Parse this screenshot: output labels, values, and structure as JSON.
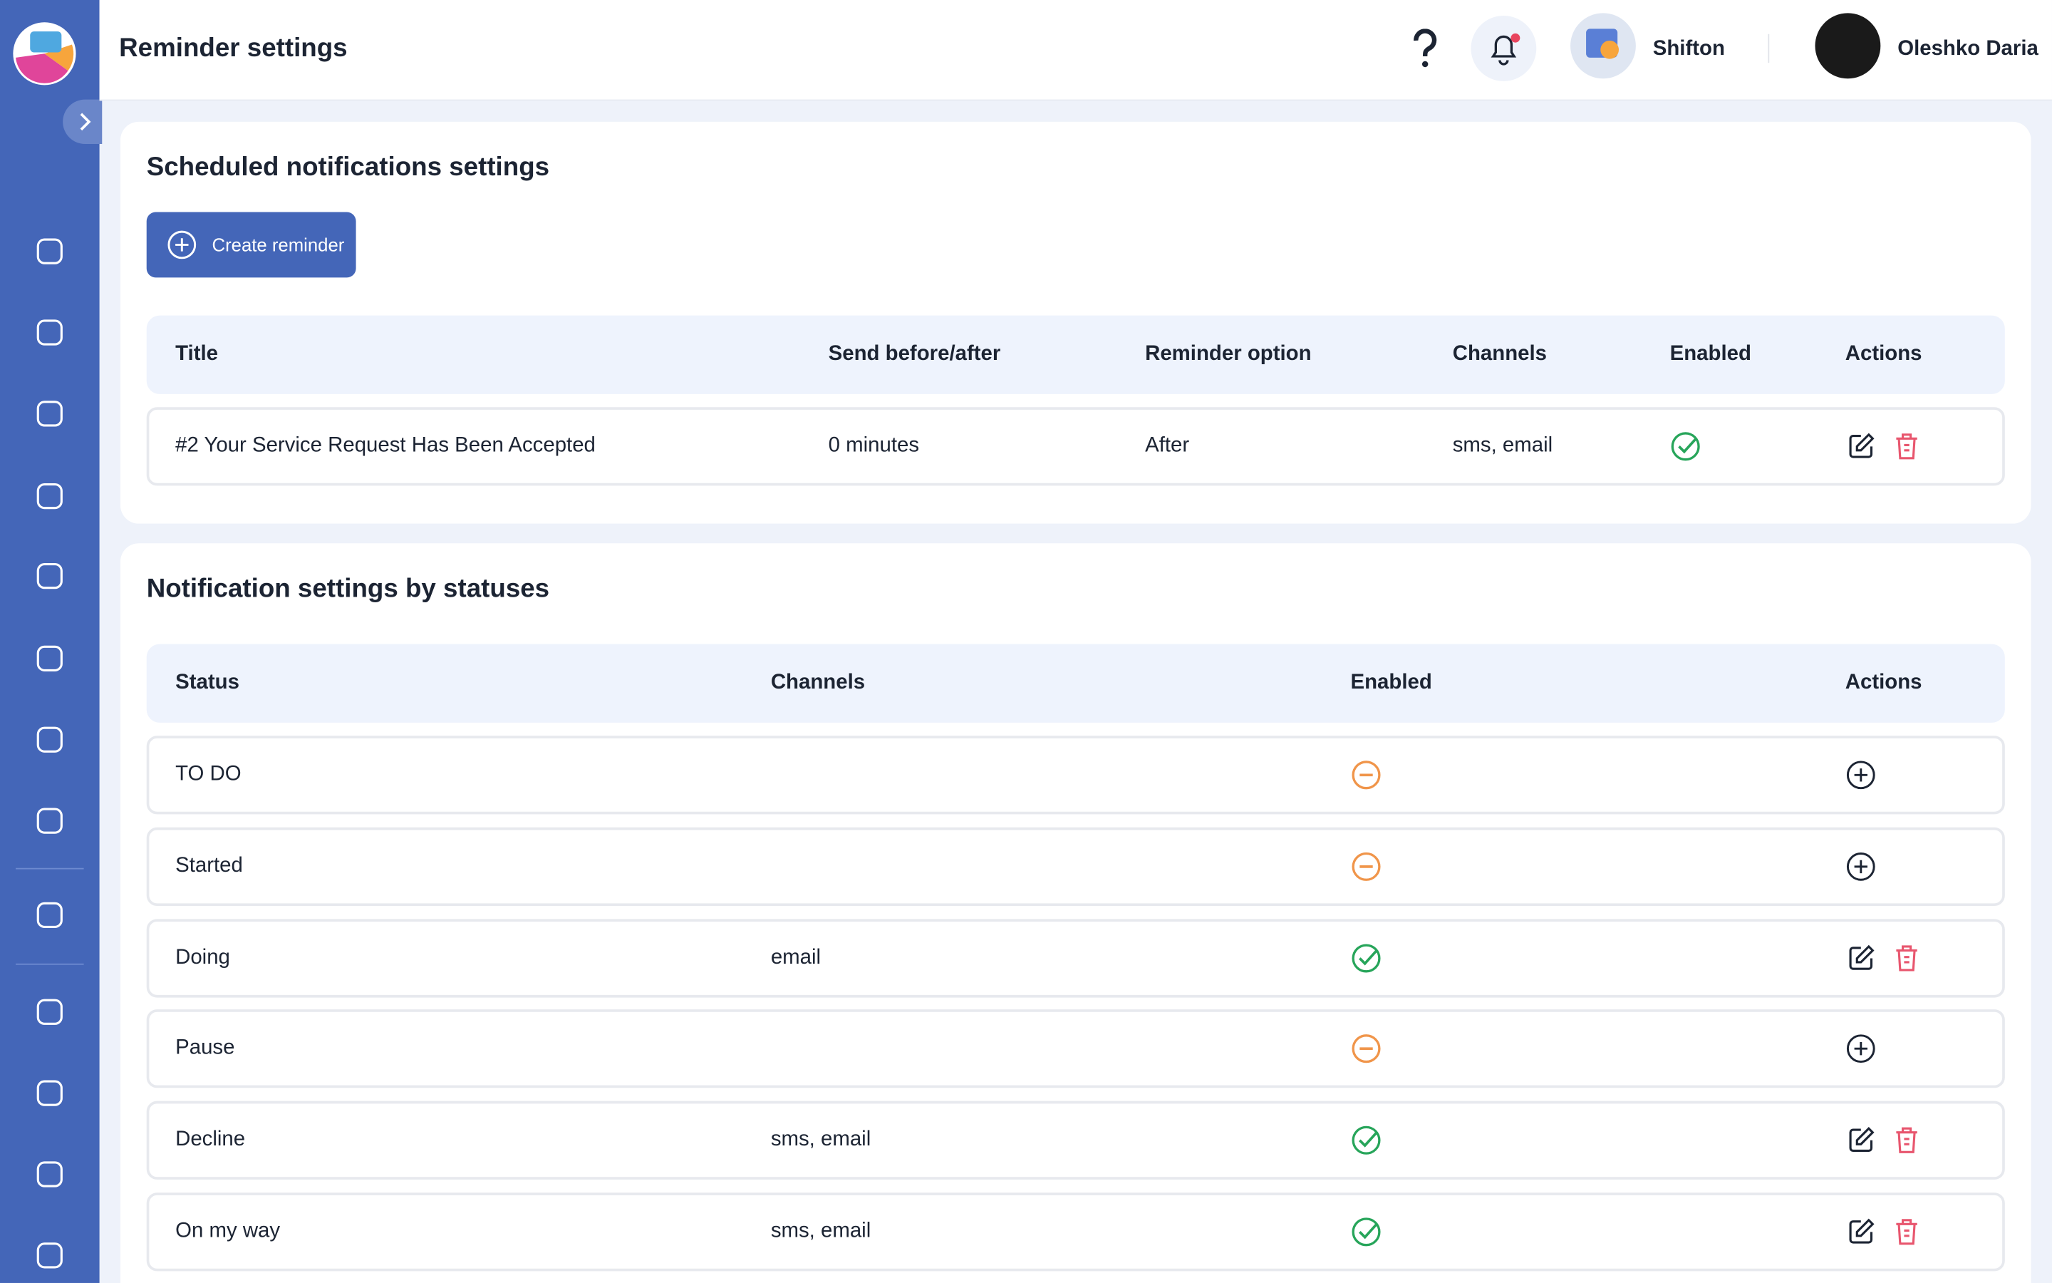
{
  "header": {
    "title": "Reminder settings",
    "company": "Shifton",
    "user": "Oleshko Daria"
  },
  "scheduled": {
    "title": "Scheduled notifications settings",
    "button": "Create reminder",
    "columns": [
      "Title",
      "Send before/after",
      "Reminder option",
      "Channels",
      "Enabled",
      "Actions"
    ],
    "rows": [
      {
        "title": "#2 Your Service Request Has Been Accepted",
        "send": "0 minutes",
        "option": "After",
        "channels": "sms, email",
        "enabled": true
      }
    ]
  },
  "statuses": {
    "title": "Notification settings by statuses",
    "columns": [
      "Status",
      "Channels",
      "Enabled",
      "Actions"
    ],
    "rows": [
      {
        "status": "TO DO",
        "channels": null,
        "enabled": false
      },
      {
        "status": "Started",
        "channels": null,
        "enabled": false
      },
      {
        "status": "Doing",
        "channels": "email",
        "enabled": true
      },
      {
        "status": "Pause",
        "channels": null,
        "enabled": false
      },
      {
        "status": "Decline",
        "channels": "sms, email",
        "enabled": true
      },
      {
        "status": "On my way",
        "channels": "sms, email",
        "enabled": true
      }
    ]
  }
}
